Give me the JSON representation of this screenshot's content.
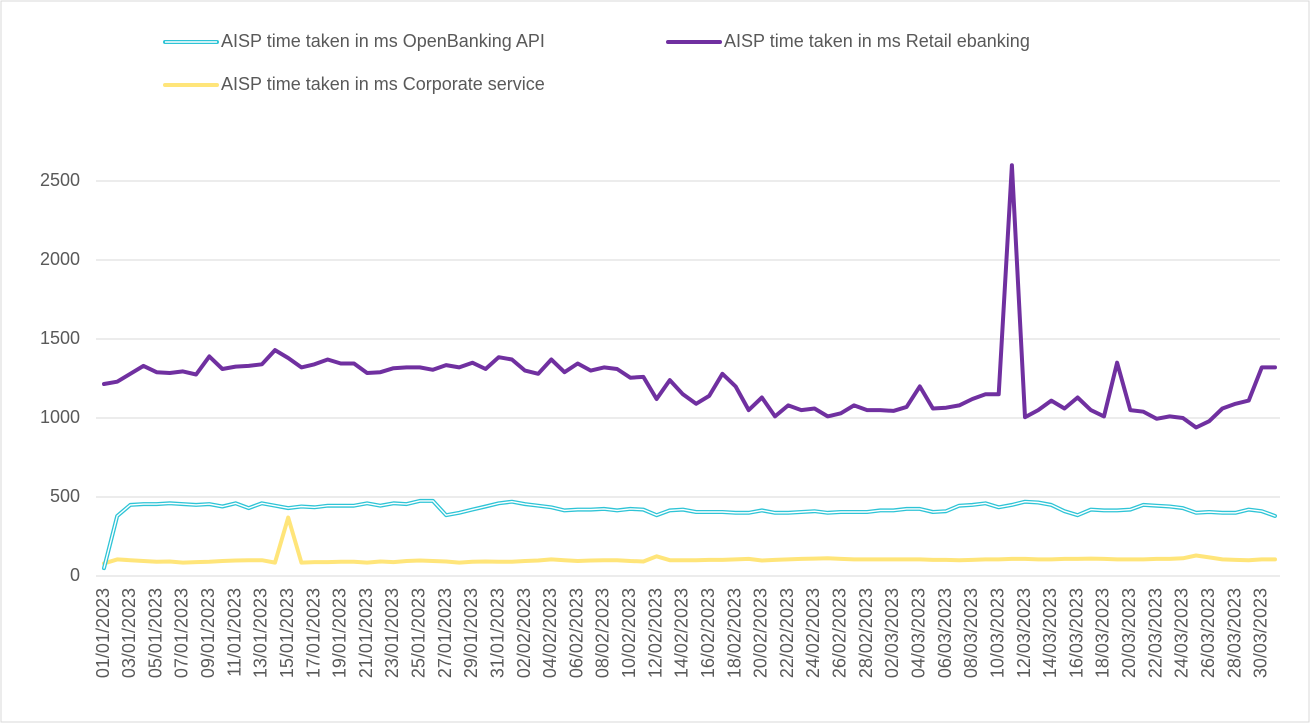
{
  "chart_data": {
    "type": "line",
    "categories": [
      "01/01/2023",
      null,
      "03/01/2023",
      null,
      "05/01/2023",
      null,
      "07/01/2023",
      null,
      "09/01/2023",
      null,
      "11/01/2023",
      null,
      "13/01/2023",
      null,
      "15/01/2023",
      null,
      "17/01/2023",
      null,
      "19/01/2023",
      null,
      "21/01/2023",
      null,
      "23/01/2023",
      null,
      "25/01/2023",
      null,
      "27/01/2023",
      null,
      "29/01/2023",
      null,
      "31/01/2023",
      null,
      "02/02/2023",
      null,
      "04/02/2023",
      null,
      "06/02/2023",
      null,
      "08/02/2023",
      null,
      "10/02/2023",
      null,
      "12/02/2023",
      null,
      "14/02/2023",
      null,
      "16/02/2023",
      null,
      "18/02/2023",
      null,
      "20/02/2023",
      null,
      "22/02/2023",
      null,
      "24/02/2023",
      null,
      "26/02/2023",
      null,
      "28/02/2023",
      null,
      "02/03/2023",
      null,
      "04/03/2023",
      null,
      "06/03/2023",
      null,
      "08/03/2023",
      null,
      "10/03/2023",
      null,
      "12/03/2023",
      null,
      "14/03/2023",
      null,
      "16/03/2023",
      null,
      "18/03/2023",
      null,
      "20/03/2023",
      null,
      "22/03/2023",
      null,
      "24/03/2023",
      null,
      "26/03/2023",
      null,
      "28/03/2023",
      null,
      "30/03/2023",
      null
    ],
    "series": [
      {
        "name": "AISP time taken in ms OpenBanking API",
        "color": "#2ec4d6",
        "values": [
          50,
          380,
          450,
          455,
          455,
          460,
          455,
          450,
          455,
          440,
          460,
          430,
          460,
          445,
          430,
          440,
          435,
          445,
          445,
          445,
          460,
          445,
          460,
          455,
          475,
          475,
          385,
          400,
          420,
          440,
          460,
          470,
          455,
          445,
          435,
          415,
          420,
          420,
          425,
          415,
          425,
          420,
          385,
          415,
          420,
          405,
          405,
          405,
          400,
          400,
          415,
          400,
          400,
          405,
          410,
          400,
          405,
          405,
          405,
          415,
          415,
          425,
          425,
          405,
          410,
          445,
          450,
          460,
          435,
          450,
          470,
          465,
          450,
          410,
          385,
          420,
          415,
          415,
          420,
          450,
          445,
          440,
          430,
          400,
          405,
          400,
          400,
          420,
          410,
          380
        ]
      },
      {
        "name": "AISP time taken in ms Retail ebanking",
        "color": "#7030a0",
        "values": [
          1215,
          1230,
          1280,
          1330,
          1290,
          1285,
          1295,
          1275,
          1390,
          1310,
          1325,
          1330,
          1340,
          1430,
          1380,
          1320,
          1340,
          1370,
          1345,
          1345,
          1285,
          1290,
          1315,
          1320,
          1320,
          1305,
          1335,
          1320,
          1350,
          1310,
          1385,
          1370,
          1300,
          1280,
          1370,
          1290,
          1345,
          1300,
          1320,
          1310,
          1255,
          1260,
          1120,
          1240,
          1150,
          1090,
          1140,
          1280,
          1200,
          1050,
          1130,
          1010,
          1080,
          1050,
          1060,
          1010,
          1030,
          1080,
          1050,
          1050,
          1045,
          1070,
          1200,
          1060,
          1065,
          1080,
          1120,
          1150,
          1150,
          2600,
          1005,
          1050,
          1110,
          1060,
          1130,
          1050,
          1010,
          1350,
          1050,
          1040,
          995,
          1010,
          1000,
          940,
          980,
          1060,
          1090,
          1110,
          1320,
          1320
        ]
      },
      {
        "name": "AISP time taken in ms Corporate service",
        "color": "#ffe57a",
        "values": [
          80,
          105,
          100,
          95,
          90,
          92,
          85,
          88,
          90,
          95,
          98,
          100,
          100,
          85,
          370,
          85,
          88,
          88,
          90,
          90,
          85,
          92,
          88,
          95,
          98,
          95,
          92,
          85,
          90,
          92,
          90,
          90,
          95,
          98,
          105,
          100,
          95,
          98,
          100,
          100,
          95,
          92,
          125,
          100,
          100,
          100,
          102,
          102,
          105,
          108,
          98,
          102,
          105,
          108,
          110,
          112,
          108,
          105,
          105,
          105,
          105,
          105,
          105,
          102,
          102,
          100,
          102,
          105,
          105,
          108,
          108,
          105,
          105,
          108,
          108,
          110,
          108,
          105,
          105,
          105,
          108,
          108,
          112,
          130,
          118,
          105,
          102,
          100,
          105,
          105
        ]
      }
    ],
    "ylim": [
      0,
      2500
    ],
    "yticks": [
      0,
      500,
      1000,
      1500,
      2000,
      2500
    ],
    "grid": true
  }
}
